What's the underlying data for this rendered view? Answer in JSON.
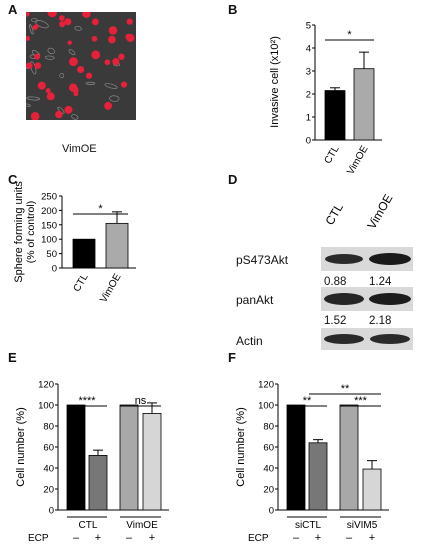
{
  "panels": {
    "A": {
      "letter": "A",
      "caption": "VimOE"
    },
    "B": {
      "letter": "B"
    },
    "C": {
      "letter": "C"
    },
    "D": {
      "letter": "D"
    },
    "E": {
      "letter": "E"
    },
    "F": {
      "letter": "F"
    }
  },
  "chart_data": [
    {
      "id": "B",
      "type": "bar",
      "categories": [
        "CTL",
        "VimOE"
      ],
      "values": [
        2.15,
        3.1
      ],
      "errors": [
        0.12,
        0.72
      ],
      "colors": [
        "#000000",
        "#aaaaaa"
      ],
      "ylabel": "Invasive cell (x10²)",
      "ylim": [
        0,
        5
      ],
      "yticks": [
        "0",
        "1",
        "2",
        "3",
        "4",
        "5"
      ],
      "significance": [
        {
          "from": 0,
          "to": 1,
          "label": "*"
        }
      ]
    },
    {
      "id": "C",
      "type": "bar",
      "categories": [
        "CTL",
        "VimOE"
      ],
      "values": [
        100,
        155
      ],
      "errors": [
        0,
        40
      ],
      "colors": [
        "#000000",
        "#aaaaaa"
      ],
      "ylabel": "Sphere forming units",
      "ylabel2": "(% of control)",
      "ylim": [
        0,
        250
      ],
      "yticks": [
        "0",
        "50",
        "100",
        "150",
        "200",
        "250"
      ],
      "significance": [
        {
          "from": 0,
          "to": 1,
          "label": "*"
        }
      ]
    },
    {
      "id": "E",
      "type": "bar",
      "groups": [
        "CTL",
        "VimOE"
      ],
      "bar_labels": [
        "–",
        "+",
        "–",
        "+"
      ],
      "values": [
        100,
        52,
        100,
        92
      ],
      "errors": [
        0,
        5,
        0,
        10
      ],
      "colors": [
        "#000000",
        "#777777",
        "#a8a8a8",
        "#d6d6d6"
      ],
      "ylabel": "Cell number (%)",
      "row_label": "ECP",
      "ylim": [
        0,
        120
      ],
      "yticks": [
        "0",
        "20",
        "40",
        "60",
        "80",
        "100",
        "120"
      ],
      "significance": [
        {
          "from": 0,
          "to": 1,
          "label": "****"
        },
        {
          "from": 2,
          "to": 3,
          "label": "ns"
        }
      ]
    },
    {
      "id": "F",
      "type": "bar",
      "groups": [
        "siCTL",
        "siVIM5"
      ],
      "bar_labels": [
        "–",
        "+",
        "–",
        "+"
      ],
      "values": [
        100,
        64,
        100,
        39
      ],
      "errors": [
        0,
        3,
        0,
        8
      ],
      "colors": [
        "#000000",
        "#777777",
        "#a8a8a8",
        "#d6d6d6"
      ],
      "ylabel": "Cell number (%)",
      "row_label": "ECP",
      "ylim": [
        0,
        120
      ],
      "yticks": [
        "0",
        "20",
        "40",
        "60",
        "80",
        "100",
        "120"
      ],
      "significance": [
        {
          "from": 0,
          "to": 1,
          "label": "**"
        },
        {
          "from": 2,
          "to": 3,
          "label": "***"
        },
        {
          "from": 1,
          "to": 3,
          "label": "**"
        }
      ]
    }
  ],
  "blot": {
    "lanes": [
      "CTL",
      "VimOE"
    ],
    "rows": [
      {
        "label": "pS473Akt",
        "values": [
          "0.88",
          "1.24"
        ]
      },
      {
        "label": "panAkt",
        "values": [
          "1.52",
          "2.18"
        ]
      },
      {
        "label": "Actin",
        "values": []
      }
    ]
  }
}
